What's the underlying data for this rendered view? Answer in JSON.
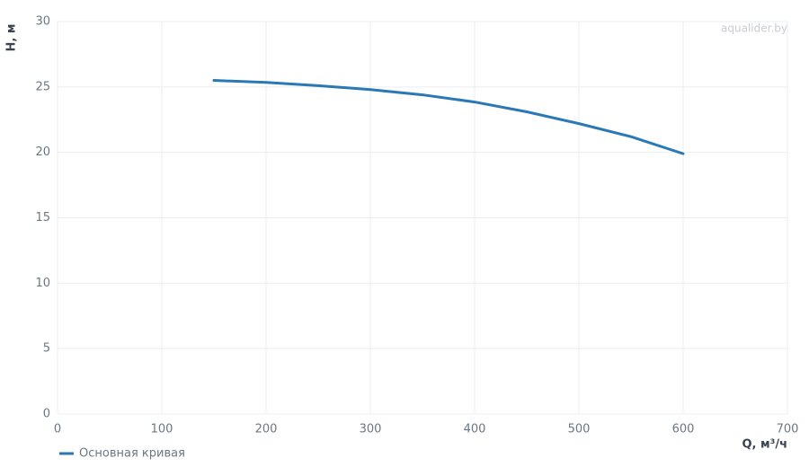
{
  "chart_data": {
    "type": "line",
    "watermark": "aqualider.by",
    "x_label": "Q, м³/ч",
    "y_label": "H, м",
    "x": [
      150,
      200,
      250,
      300,
      350,
      400,
      450,
      500,
      550,
      600
    ],
    "series": [
      {
        "name": "Основная кривая",
        "color": "#2a78b5",
        "values": [
          25.5,
          25.35,
          25.1,
          24.8,
          24.4,
          23.85,
          23.1,
          22.2,
          21.2,
          19.9
        ]
      }
    ],
    "xlim": [
      0,
      700
    ],
    "xticks": [
      0,
      100,
      200,
      300,
      400,
      500,
      600,
      700
    ],
    "ylim": [
      0,
      30
    ],
    "yticks": [
      0,
      5,
      10,
      15,
      20,
      25,
      30
    ],
    "grid": true,
    "legend": "bottom-left"
  }
}
